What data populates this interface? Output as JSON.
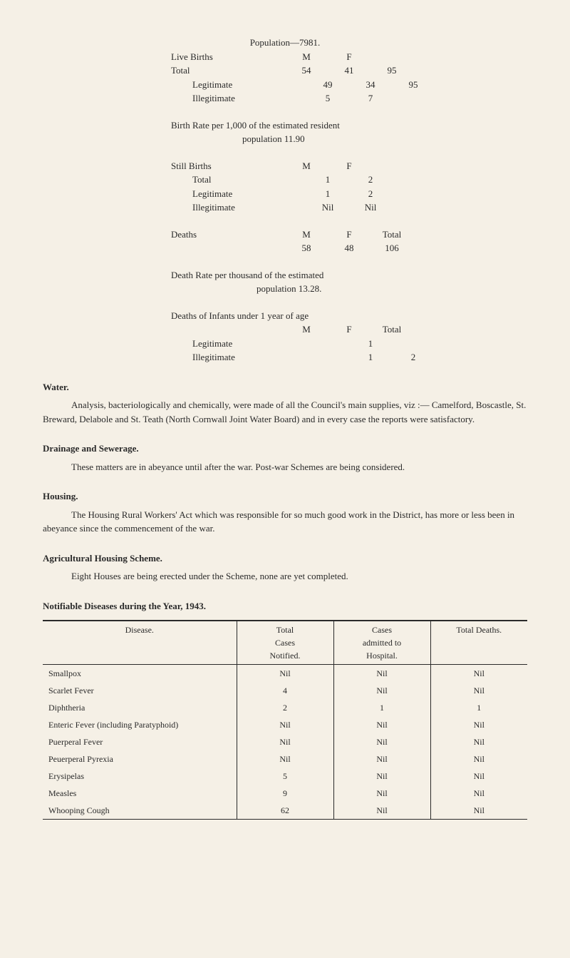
{
  "population_header": "Population—7981.",
  "live_births_label": "Live Births",
  "total_label": "Total",
  "legitimate_label": "Legitimate",
  "illegitimate_label": "Illegitimate",
  "col_m": "M",
  "col_f": "F",
  "col_total": "Total",
  "live_births": {
    "total_m": "54",
    "total_f": "41",
    "total_t": "95",
    "legit_m": "49",
    "legit_f": "34",
    "illegit_m": "5",
    "illegit_f": "7",
    "right_t": "95"
  },
  "birth_rate_line1": "Birth  Rate  per  1,000 of  the  estimated  resident",
  "birth_rate_line2": "population      11.90",
  "still_births_label": "Still Births",
  "still_births": {
    "total_m": "1",
    "total_f": "2",
    "legit_m": "1",
    "legit_f": "2",
    "illegit_m": "Nil",
    "illegit_f": "Nil"
  },
  "deaths_label": "Deaths",
  "deaths": {
    "m": "58",
    "f": "48",
    "t": "106"
  },
  "death_rate_line1": "Death   Rate   per   thousand   of   the   estimated",
  "death_rate_line2": "population     13.28.",
  "infants_header": "Deaths of Infants under 1 year of age",
  "infants": {
    "legit_m": "",
    "legit_f": "1",
    "legit_t": "",
    "illegit_m": "",
    "illegit_f": "1",
    "illegit_t": "2"
  },
  "water_title": "Water.",
  "water_body": "Analysis, bacteriologically and chemically, were made of all the Council's main supplies, viz :— Camelford, Boscastle, St. Breward, Delabole and St. Teath (North Cornwall Joint Water Board) and in every case the reports were satisfactory.",
  "drainage_title": "Drainage and Sewerage.",
  "drainage_body": "These matters are in abeyance until after the war.  Post-war Schemes are being considered.",
  "housing_title": "Housing.",
  "housing_body": "The Housing Rural Workers' Act which was responsible for so much good work in the District, has more or less been in abeyance since the commencement of the war.",
  "ag_title": "Agricultural Housing Scheme.",
  "ag_body": "Eight Houses are being erected under the Scheme, none are yet completed.",
  "notif_title": "Notifiable Diseases during the Year, 1943.",
  "notif_headers": {
    "disease": "Disease.",
    "total_cases": "Total\nCases\nNotified.",
    "admitted": "Cases\nadmitted to\nHospital.",
    "deaths": "Total Deaths."
  },
  "notif_rows": [
    {
      "d": "Smallpox",
      "c": "Nil",
      "a": "Nil",
      "t": "Nil"
    },
    {
      "d": "Scarlet Fever",
      "c": "4",
      "a": "Nil",
      "t": "Nil"
    },
    {
      "d": "Diphtheria",
      "c": "2",
      "a": "1",
      "t": "1"
    },
    {
      "d": "Enteric Fever (including Paratyphoid)",
      "c": "Nil",
      "a": "Nil",
      "t": "Nil"
    },
    {
      "d": "Puerperal Fever",
      "c": "Nil",
      "a": "Nil",
      "t": "Nil"
    },
    {
      "d": "Peuerperal Pyrexia",
      "c": "Nil",
      "a": "Nil",
      "t": "Nil"
    },
    {
      "d": "Erysipelas",
      "c": "5",
      "a": "Nil",
      "t": "Nil"
    },
    {
      "d": "Measles",
      "c": "9",
      "a": "Nil",
      "t": "Nil"
    },
    {
      "d": "Whooping Cough",
      "c": "62",
      "a": "Nil",
      "t": "Nil"
    }
  ]
}
